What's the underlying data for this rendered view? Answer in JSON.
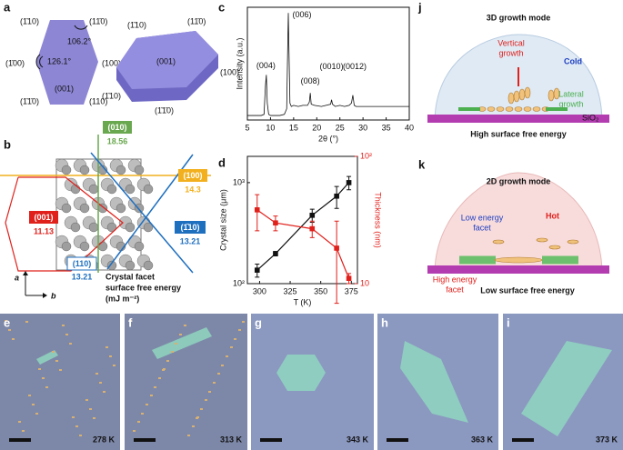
{
  "panel_labels": [
    "a",
    "b",
    "c",
    "d",
    "e",
    "f",
    "g",
    "h",
    "i",
    "j",
    "k"
  ],
  "panel_a": {
    "left": [
      "(1̄10)",
      "(11̄0)",
      "(1̄00)",
      "(100)",
      "(1̄1̄0)",
      "(001)",
      "(110)"
    ],
    "angles": [
      "106.2°",
      "126.1°"
    ],
    "right": [
      "(1̄10)",
      "(11̄0)",
      "(001)",
      "(100)",
      "(1̄1̄0)",
      "(1̄10)"
    ]
  },
  "panel_b": {
    "facets": [
      {
        "name": "(010)",
        "energy": 18.56
      },
      {
        "name": "(100)",
        "energy": 14.3
      },
      {
        "name": "(001)",
        "energy": 11.13
      },
      {
        "name": "(1̄10)",
        "energy": 13.21
      },
      {
        "name": "(110)",
        "energy": 13.21
      }
    ],
    "caption": [
      "Crystal facet",
      "surface free energy",
      "(mJ m⁻²)"
    ],
    "axes": [
      "a",
      "b"
    ]
  },
  "chart_data": [
    {
      "type": "line",
      "xlabel": "2θ (°)",
      "ylabel": "Intensity (a.u.)",
      "x": [
        5,
        6,
        7,
        8,
        8.6,
        8.9,
        9.1,
        9.3,
        9.6,
        10,
        11,
        12,
        13,
        13.5,
        13.7,
        13.85,
        14.0,
        14.2,
        14.5,
        15,
        16,
        17,
        18,
        18.4,
        18.6,
        18.8,
        19.5,
        21,
        22,
        23,
        23.2,
        23.4,
        24,
        25,
        26,
        27,
        27.5,
        27.8,
        28.1,
        28.5,
        30,
        32,
        34,
        36,
        38,
        40
      ],
      "series": [
        {
          "color": "#111111",
          "values": [
            4,
            4,
            4,
            4,
            5,
            30,
            40,
            15,
            5,
            4,
            4,
            4,
            5,
            10,
            60,
            95,
            60,
            15,
            12,
            13,
            12,
            13,
            13,
            16,
            24,
            14,
            13,
            12,
            13,
            14,
            18,
            14,
            12,
            13,
            12,
            13,
            15,
            22,
            13,
            12,
            12,
            12,
            12,
            12,
            12,
            12
          ]
        }
      ],
      "xlim": [
        5,
        40
      ],
      "xticks": [
        5,
        10,
        15,
        20,
        25,
        30,
        35,
        40
      ],
      "ylim": [
        0,
        100
      ],
      "annotations": [
        {
          "text": "(004)",
          "x": 9,
          "y": 48
        },
        {
          "text": "(006)",
          "x": 16.8,
          "y": 93
        },
        {
          "text": "(008)",
          "x": 18.6,
          "y": 34
        },
        {
          "text": "(0010)",
          "x": 23.2,
          "y": 47
        },
        {
          "text": "(0012)",
          "x": 28.2,
          "y": 47
        }
      ]
    },
    {
      "type": "line",
      "xlabel": "T (K)",
      "ylabel": "Crystal size (μm)",
      "y2label": "Thickness (nm)",
      "x": [
        298,
        313,
        343,
        363,
        373
      ],
      "series": [
        {
          "color": "#111111",
          "values": [
            136,
            198,
            475,
            735,
            1000
          ],
          "errors": [
            20,
            10,
            70,
            180,
            150
          ]
        },
        {
          "color": "#e0201b",
          "axis": "y2",
          "values": [
            38,
            30,
            27,
            19,
            11
          ],
          "errors": [
            12,
            4,
            4,
            12,
            1
          ]
        }
      ],
      "xlim": [
        290,
        380
      ],
      "xticks": [
        300,
        325,
        350,
        375
      ],
      "ylim": [
        100,
        1820
      ],
      "ylog": true,
      "yticks": [
        {
          "value": 100,
          "label": "10²"
        },
        {
          "value": 1000,
          "label": "10³"
        }
      ],
      "y2lim": [
        10,
        100
      ],
      "y2log": true,
      "y2ticks": [
        10,
        {
          "value": 100,
          "label": "10²"
        }
      ]
    }
  ],
  "micrographs": [
    "278 K",
    "313 K",
    "343 K",
    "363 K",
    "373 K"
  ],
  "panel_j": {
    "title": "3D growth mode",
    "vertical": [
      "Vertical",
      "growth"
    ],
    "cold": "Cold",
    "lateral": [
      "Lateral",
      "growth"
    ],
    "substrate": "SiO₂",
    "caption": "High surface free energy"
  },
  "panel_k": {
    "title": "2D growth mode",
    "hot": "Hot",
    "low": [
      "Low energy",
      "facet"
    ],
    "high": [
      "High energy",
      "facet"
    ],
    "caption": "Low surface free energy"
  }
}
